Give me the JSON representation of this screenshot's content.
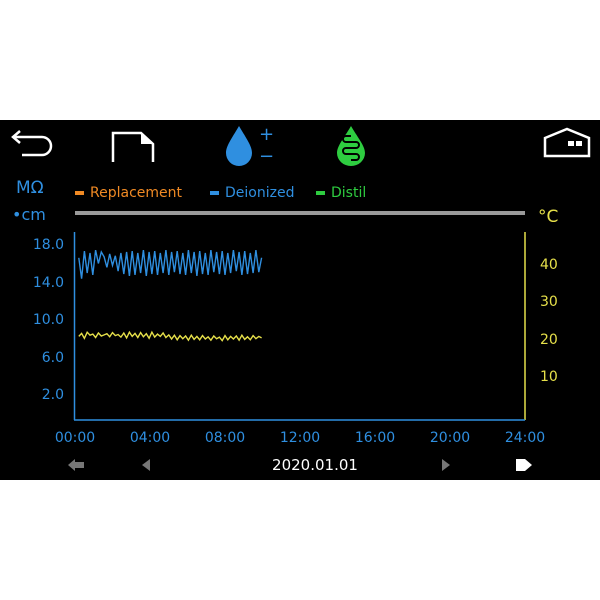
{
  "toolbar": {
    "icons": [
      "back-arrow-icon",
      "document-icon",
      "deionized-drop-icon",
      "distil-drop-icon",
      "home-icon"
    ],
    "plus": "+",
    "minus": "−"
  },
  "colors": {
    "replacement": "#f08a24",
    "deionized": "#2f8fe0",
    "distil": "#2ecc40",
    "temperature": "#e6e04a",
    "axis_left": "#2f8fe0",
    "divider": "#9a9a9a"
  },
  "left_unit_line1": "MΩ",
  "left_unit_line2": "•cm",
  "right_unit": "°C",
  "legend": [
    {
      "label": "Replacement",
      "color": "#f08a24"
    },
    {
      "label": "Deionized",
      "color": "#2f8fe0"
    },
    {
      "label": "Distil",
      "color": "#2ecc40"
    }
  ],
  "date": "2020.01.01",
  "chart_data": {
    "type": "line",
    "x_ticks": [
      "00:00",
      "04:00",
      "08:00",
      "12:00",
      "16:00",
      "20:00",
      "24:00"
    ],
    "xlim_hours": [
      0,
      24
    ],
    "left_y": {
      "unit": "MΩ•cm",
      "ticks": [
        "18.0",
        "14.0",
        "10.0",
        "6.0",
        "2.0"
      ],
      "ylim": [
        0,
        19.5
      ]
    },
    "right_y": {
      "unit": "°C",
      "ticks": [
        "40",
        "30",
        "20",
        "10"
      ],
      "ylim": [
        0,
        49
      ]
    },
    "x_hours": [
      0.2,
      0.35,
      0.5,
      0.65,
      0.8,
      0.95,
      1.1,
      1.25,
      1.4,
      1.55,
      1.7,
      1.85,
      2.0,
      2.15,
      2.3,
      2.45,
      2.6,
      2.75,
      2.9,
      3.05,
      3.2,
      3.35,
      3.5,
      3.65,
      3.8,
      3.95,
      4.1,
      4.25,
      4.4,
      4.55,
      4.7,
      4.85,
      5.0,
      5.15,
      5.3,
      5.45,
      5.6,
      5.75,
      5.9,
      6.05,
      6.2,
      6.35,
      6.5,
      6.65,
      6.8,
      6.95,
      7.1,
      7.25,
      7.4,
      7.55,
      7.7,
      7.85,
      8.0,
      8.15,
      8.3,
      8.45,
      8.6,
      8.75,
      8.9,
      9.05,
      9.2,
      9.35,
      9.5,
      9.65,
      9.8,
      9.95
    ],
    "series": [
      {
        "name": "Deionized",
        "axis": "left",
        "color": "#2f8fe0",
        "values": [
          16.8,
          14.6,
          17.5,
          15.2,
          17.3,
          15.0,
          17.6,
          16.2,
          17.4,
          16.9,
          15.8,
          17.2,
          16.0,
          17.0,
          15.4,
          17.3,
          15.1,
          17.4,
          14.9,
          17.5,
          15.0,
          17.3,
          15.2,
          17.6,
          14.9,
          17.4,
          15.1,
          17.5,
          15.0,
          17.3,
          15.2,
          17.6,
          15.0,
          17.4,
          15.3,
          17.5,
          15.1,
          17.3,
          15.0,
          17.6,
          15.2,
          17.4,
          14.9,
          17.5,
          15.1,
          17.3,
          15.0,
          17.6,
          15.3,
          17.4,
          15.1,
          17.5,
          15.0,
          17.3,
          15.2,
          17.6,
          15.4,
          17.4,
          15.0,
          17.5,
          15.1,
          17.3,
          15.2,
          17.6,
          15.3,
          16.8
        ]
      },
      {
        "axis": "right",
        "color": "#e6e04a",
        "values": [
          21.5,
          22.3,
          21.0,
          22.6,
          21.8,
          22.1,
          21.2,
          22.4,
          21.6,
          21.9,
          22.2,
          21.4,
          22.5,
          21.7,
          22.0,
          21.3,
          22.4,
          21.1,
          22.6,
          21.5,
          22.3,
          21.2,
          22.5,
          21.4,
          22.2,
          21.0,
          22.6,
          21.3,
          22.1,
          21.5,
          22.4,
          21.2,
          21.9,
          20.8,
          21.8,
          20.6,
          21.7,
          20.9,
          21.6,
          20.5,
          21.8,
          20.7,
          21.5,
          20.6,
          21.7,
          20.8,
          21.4,
          20.5,
          21.6,
          20.9,
          21.3,
          20.4,
          21.7,
          20.6,
          21.5,
          20.8,
          21.6,
          20.5,
          21.8,
          20.7,
          21.4,
          20.6,
          21.7,
          20.9,
          21.5,
          21.1
        ]
      }
    ]
  }
}
